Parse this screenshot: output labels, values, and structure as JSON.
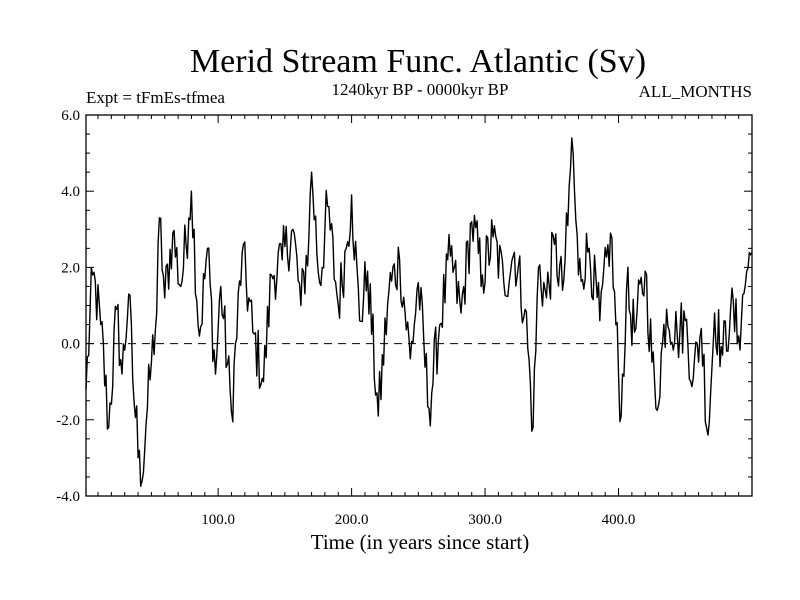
{
  "chart_data": {
    "type": "line",
    "title": "Merid Stream Func. Atlantic (Sv)",
    "subtitle_left": "Expt = tFmEs-tfmea",
    "subtitle_center": "1240kyr BP - 0000kyr BP",
    "subtitle_right": "ALL_MONTHS",
    "xlabel": "Time (in years since start)",
    "ylabel": "",
    "xlim": [
      1,
      500
    ],
    "ylim": [
      -4.0,
      6.0
    ],
    "xticks": [
      100,
      200,
      300,
      400
    ],
    "xtick_labels": [
      "100.0",
      "200.0",
      "300.0",
      "400.0"
    ],
    "yticks": [
      -4.0,
      -2.0,
      0.0,
      2.0,
      4.0,
      6.0
    ],
    "ytick_labels": [
      "-4.0",
      "-2.0",
      "0.0",
      "2.0",
      "4.0",
      "6.0"
    ],
    "reference_line": {
      "y": 0.0,
      "style": "dashed"
    },
    "series": [
      {
        "name": "Merid Stream Func. Atlantic",
        "x": [
          1,
          6,
          12,
          18,
          24,
          28,
          33,
          37,
          41,
          43,
          46,
          50,
          54,
          56,
          60,
          66,
          72,
          78,
          80,
          86,
          92,
          98,
          102,
          110,
          118,
          126,
          134,
          140,
          148,
          156,
          162,
          168,
          170,
          176,
          182,
          190,
          196,
          200,
          206,
          212,
          220,
          228,
          236,
          244,
          250,
          258,
          266,
          274,
          282,
          290,
          298,
          306,
          314,
          322,
          330,
          336,
          340,
          346,
          352,
          358,
          362,
          365,
          370,
          378,
          386,
          394,
          402,
          406,
          412,
          420,
          428,
          436,
          444,
          450,
          456,
          462,
          467,
          472,
          478,
          484,
          490,
          496,
          500
        ],
        "y": [
          -1.2,
          1.8,
          0.5,
          -2.2,
          0.9,
          -0.8,
          1.3,
          -1.5,
          -2.8,
          -3.6,
          -2.1,
          -0.5,
          0.8,
          3.3,
          1.2,
          2.9,
          1.5,
          3.3,
          4.0,
          0.2,
          2.5,
          -0.8,
          1.5,
          -1.8,
          2.4,
          0.3,
          -1.0,
          1.8,
          2.2,
          3.0,
          1.0,
          2.8,
          4.5,
          1.6,
          3.6,
          1.0,
          2.5,
          3.9,
          0.6,
          1.9,
          -1.9,
          1.4,
          2.2,
          -0.4,
          1.6,
          -1.7,
          0.5,
          2.3,
          0.8,
          3.2,
          1.8,
          2.8,
          1.6,
          2.4,
          0.9,
          -2.2,
          2.0,
          1.2,
          2.6,
          1.4,
          3.1,
          5.4,
          1.8,
          2.5,
          0.6,
          2.9,
          -1.9,
          1.4,
          0.3,
          1.9,
          -1.7,
          0.9,
          0.2,
          0.6,
          -0.9,
          0.4,
          -2.4,
          0.8,
          -0.3,
          0.9,
          0.2,
          1.9,
          2.4
        ]
      }
    ]
  }
}
